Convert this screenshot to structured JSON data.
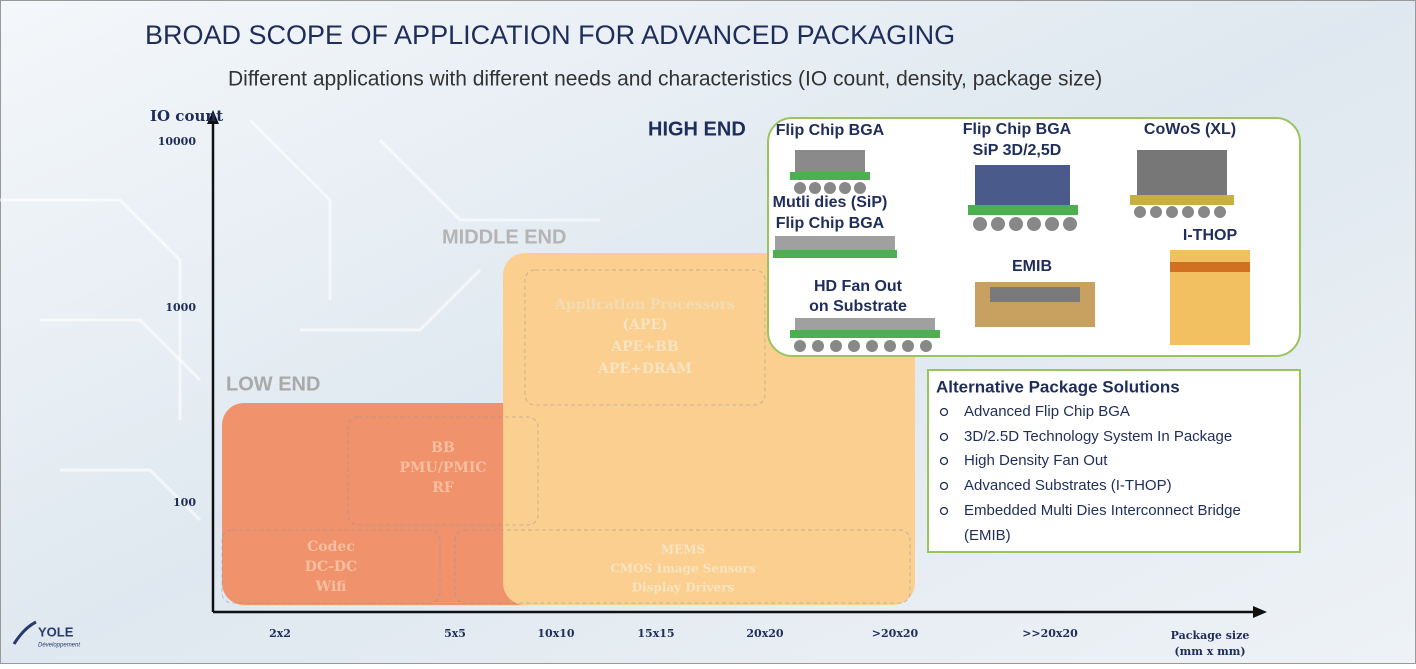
{
  "header": {
    "title": "BROAD SCOPE OF APPLICATION FOR ADVANCED PACKAGING",
    "subtitle": "Different applications with different needs and characteristics (IO count, density, package size)"
  },
  "axes": {
    "y_label": "IO count",
    "y_ticks": [
      "10000",
      "1000",
      "100"
    ],
    "x_ticks": [
      "2x2",
      "5x5",
      "10x10",
      "15x15",
      "20x20",
      ">20x20",
      ">>20x20"
    ],
    "x_label": [
      "Package size",
      "(mm x mm)"
    ]
  },
  "regions": {
    "low": "LOW END",
    "middle": "MIDDLE END",
    "high": "HIGH END"
  },
  "boxes": [
    {
      "lines": [
        "BB",
        "PMU/PMIC",
        "RF"
      ]
    },
    {
      "lines": [
        "Application Processors",
        "(APE)",
        "APE+BB",
        "APE+DRAM"
      ]
    },
    {
      "lines": [
        "Codec",
        "DC-DC",
        "Wifi"
      ]
    },
    {
      "lines": [
        "MEMS",
        "CMOS Image Sensors",
        "Display Drivers"
      ]
    }
  ],
  "packages": [
    {
      "lines": [
        "Flip Chip BGA"
      ]
    },
    {
      "lines": [
        "Mutli dies (SiP)",
        "Flip Chip BGA"
      ]
    },
    {
      "lines": [
        "HD Fan Out",
        "on Substrate"
      ]
    },
    {
      "lines": [
        "Flip Chip BGA",
        "SiP 3D/2,5D"
      ]
    },
    {
      "lines": [
        "EMIB"
      ]
    },
    {
      "lines": [
        "CoWoS (XL)"
      ]
    },
    {
      "lines": [
        "I-THOP"
      ]
    }
  ],
  "alternatives": {
    "title": "Alternative Package Solutions",
    "items": [
      "Advanced Flip Chip BGA",
      "3D/2.5D Technology System In Package",
      "High Density Fan Out",
      "Advanced Substrates (I-THOP)",
      [
        "Embedded Multi Dies Interconnect Bridge",
        "(EMIB)"
      ]
    ]
  },
  "logo": {
    "name": "YOLE",
    "tagline": "Développement"
  }
}
